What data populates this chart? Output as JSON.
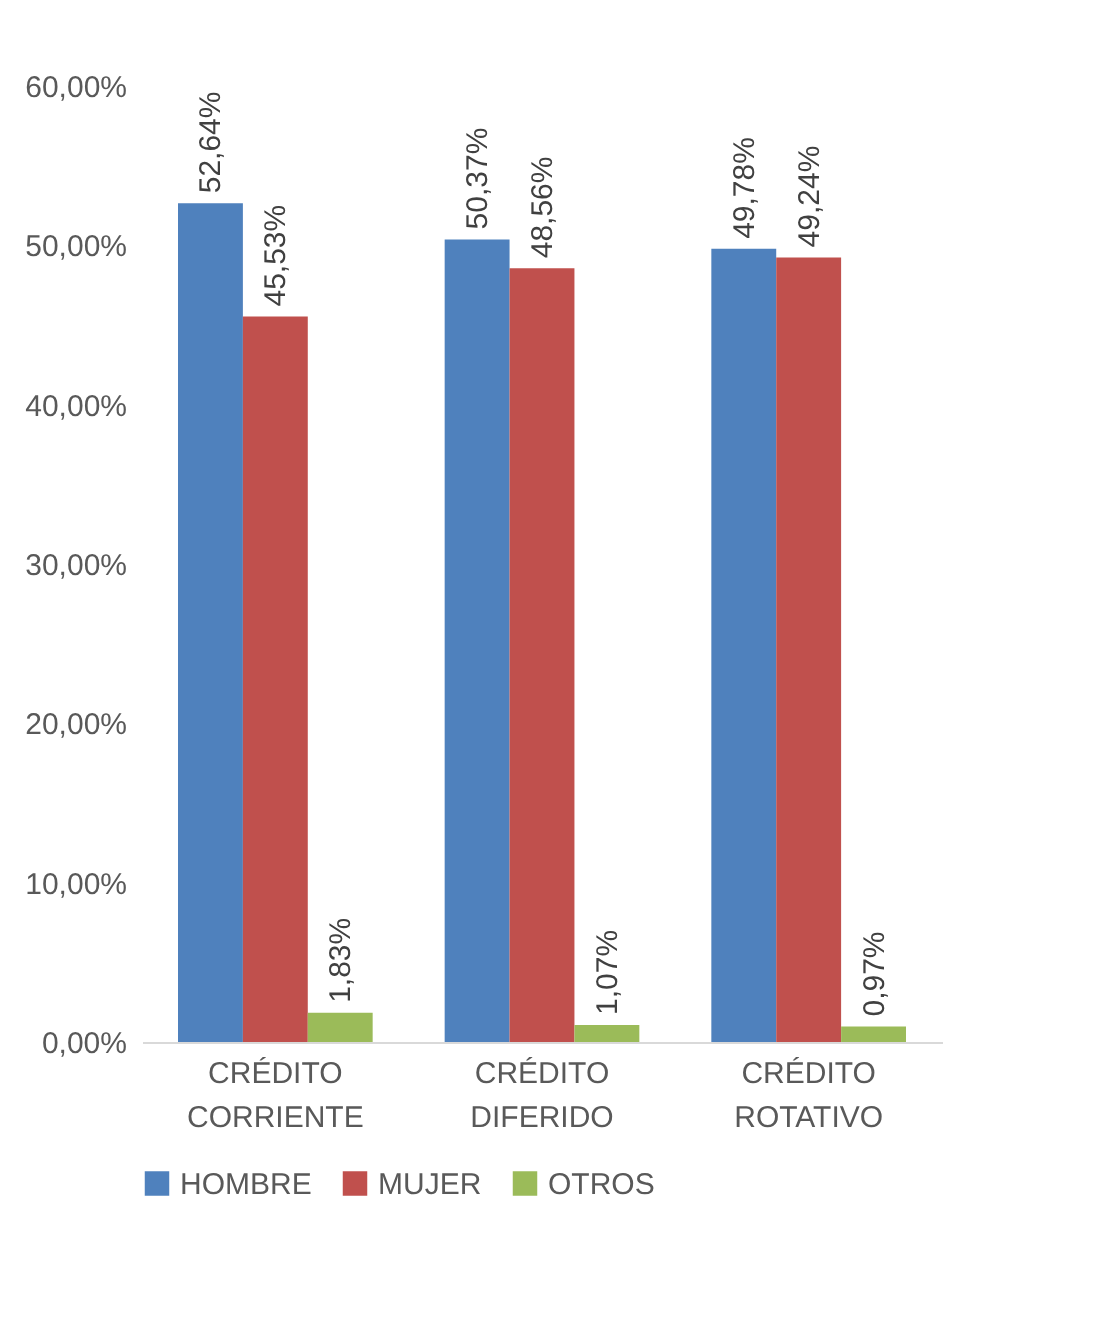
{
  "chart_data": {
    "type": "bar",
    "categories": [
      "CRÉDITO CORRIENTE",
      "CRÉDITO DIFERIDO",
      "CRÉDITO ROTATIVO"
    ],
    "series": [
      {
        "name": "HOMBRE",
        "color": "#4f81bd",
        "values": [
          52.64,
          50.37,
          49.78
        ],
        "value_labels": [
          "52,64%",
          "50,37%",
          "49,78%"
        ]
      },
      {
        "name": "MUJER",
        "color": "#c0504d",
        "values": [
          45.53,
          48.56,
          49.24
        ],
        "value_labels": [
          "45,53%",
          "48,56%",
          "49,24%"
        ]
      },
      {
        "name": "OTROS",
        "color": "#9bbb59",
        "values": [
          1.83,
          1.07,
          0.97
        ],
        "value_labels": [
          "1,83%",
          "1,07%",
          "0,97%"
        ]
      }
    ],
    "ylim": [
      0,
      60
    ],
    "yticks": [
      {
        "value": 0,
        "label": "0,00%"
      },
      {
        "value": 10,
        "label": "10,00%"
      },
      {
        "value": 20,
        "label": "20,00%"
      },
      {
        "value": 30,
        "label": "30,00%"
      },
      {
        "value": 40,
        "label": "40,00%"
      },
      {
        "value": 50,
        "label": "50,00%"
      },
      {
        "value": 60,
        "label": "60,00%"
      }
    ],
    "grid": false,
    "legend": "bottom"
  }
}
